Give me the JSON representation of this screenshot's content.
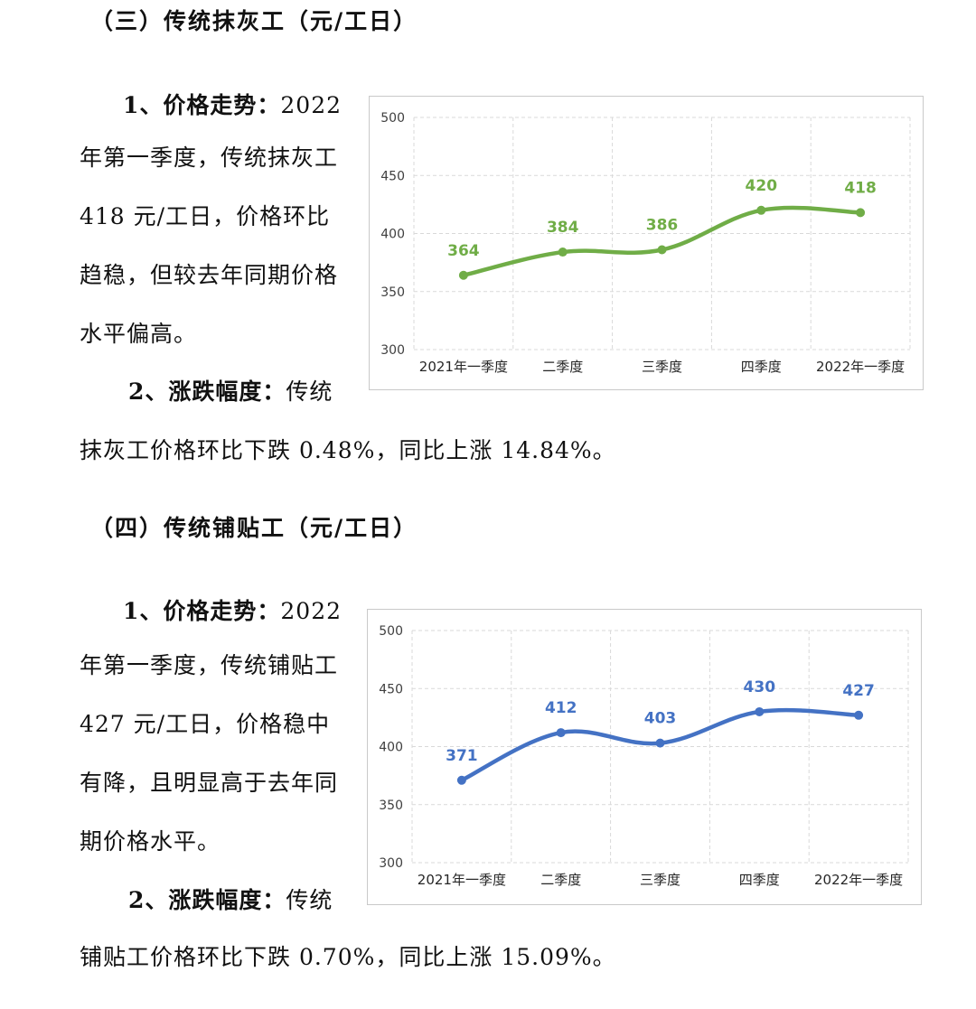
{
  "section3": {
    "heading": "（三）传统抹灰工（元/工日）",
    "p1_label": "1、价格走势：",
    "p1_lines": [
      "2022",
      "年第一季度，传统抹灰工",
      "418 元/工日，价格环比",
      "趋稳，但较去年同期价格",
      "水平偏高。"
    ],
    "p2_label": "2、涨跌幅度：",
    "p2_text": "传统",
    "p2_cont": "抹灰工价格环比下跌 0.48%，同比上涨 14.84%。"
  },
  "section4": {
    "heading": "（四）传统铺贴工（元/工日）",
    "p1_label": "1、价格走势：",
    "p1_lines": [
      "2022",
      "年第一季度，传统铺贴工",
      "427 元/工日，价格稳中",
      "有降，且明显高于去年同",
      "期价格水平。"
    ],
    "p2_label": "2、涨跌幅度：",
    "p2_text": "传统",
    "p2_cont": "铺贴工价格环比下跌 0.70%，同比上涨 15.09%。"
  },
  "chart_data": [
    {
      "type": "line",
      "categories": [
        "2021年一季度",
        "二季度",
        "三季度",
        "四季度",
        "2022年一季度"
      ],
      "values": [
        364,
        384,
        386,
        420,
        418
      ],
      "ylim": [
        300,
        500
      ],
      "yticks": [
        "500",
        "450",
        "400",
        "350",
        "300"
      ],
      "color": "#70ad47",
      "grid": true,
      "smooth": true
    },
    {
      "type": "line",
      "categories": [
        "2021年一季度",
        "二季度",
        "三季度",
        "四季度",
        "2022年一季度"
      ],
      "values": [
        371,
        412,
        403,
        430,
        427
      ],
      "ylim": [
        300,
        500
      ],
      "yticks": [
        "500",
        "450",
        "400",
        "350",
        "300"
      ],
      "color": "#4472c4",
      "grid": true,
      "smooth": true
    }
  ]
}
